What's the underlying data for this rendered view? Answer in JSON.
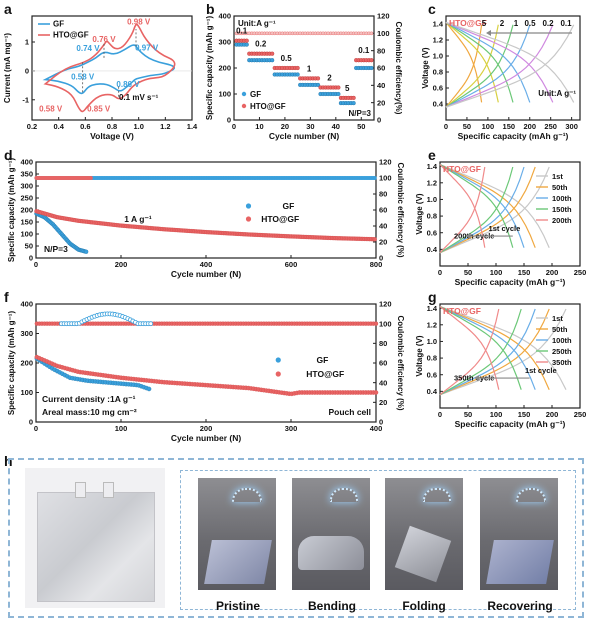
{
  "panel_letters": {
    "a": "a",
    "b": "b",
    "c": "c",
    "d": "d",
    "e": "e",
    "f": "f",
    "g": "g",
    "h": "h"
  },
  "colors": {
    "gf": "#3aa0dc",
    "hto": "#e86464",
    "gf_light": "#bcdff2",
    "hto_light": "#f3c0c0",
    "frame": "#222222",
    "dash": "#8fb6d6"
  },
  "chart_data": [
    {
      "id": "a",
      "type": "line",
      "xlabel": "Voltage (V)",
      "ylabel": "Current (mA mg⁻¹)",
      "xlim": [
        0.2,
        1.4
      ],
      "ylim": [
        -1.7,
        1.9
      ],
      "xticks": [
        "0.2",
        "0.4",
        "0.6",
        "0.8",
        "1.0",
        "1.2",
        "1.4"
      ],
      "yticks": [
        "-1",
        "0",
        "1"
      ],
      "series": [
        {
          "name": "GF",
          "x": [
            0.3,
            0.4,
            0.5,
            0.55,
            0.58,
            0.62,
            0.68,
            0.74,
            0.78,
            0.82,
            0.86,
            0.9,
            0.95,
            0.97,
            1.0,
            1.05,
            1.1,
            1.2,
            1.3,
            1.1,
            1.0,
            0.97,
            0.9,
            0.82,
            0.74,
            0.68,
            0.62,
            0.55,
            0.45,
            0.3
          ],
          "y": [
            -0.3,
            -0.35,
            -0.5,
            -0.75,
            -0.8,
            -0.55,
            -0.45,
            -0.45,
            -0.5,
            -0.6,
            -0.72,
            -0.6,
            -0.4,
            -0.3,
            -0.25,
            -0.2,
            -0.15,
            -0.1,
            0.15,
            0.35,
            0.7,
            0.95,
            0.75,
            0.55,
            0.68,
            0.45,
            0.3,
            0.15,
            0.05,
            -0.3
          ]
        },
        {
          "name": "HTO@GF",
          "x": [
            0.3,
            0.4,
            0.5,
            0.55,
            0.58,
            0.62,
            0.7,
            0.8,
            0.85,
            0.9,
            0.95,
            1.0,
            1.05,
            1.1,
            1.2,
            1.3,
            1.15,
            1.05,
            1.0,
            0.98,
            0.95,
            0.88,
            0.82,
            0.78,
            0.76,
            0.74,
            0.68,
            0.6,
            0.45,
            0.3
          ],
          "y": [
            -0.45,
            -0.55,
            -0.8,
            -1.3,
            -1.45,
            -1.2,
            -0.85,
            -0.8,
            -1.0,
            -0.85,
            -0.55,
            -0.4,
            -0.3,
            -0.25,
            -0.2,
            0.3,
            0.6,
            1.1,
            1.55,
            1.65,
            1.25,
            0.8,
            0.75,
            0.95,
            1.05,
            0.9,
            0.55,
            0.3,
            0.1,
            -0.45
          ]
        }
      ],
      "annotations": [
        {
          "text": "0.98 V",
          "x": 1.0,
          "y": 1.6,
          "color": "hto"
        },
        {
          "text": "0.76 V",
          "x": 0.74,
          "y": 1.0,
          "color": "hto"
        },
        {
          "text": "0.74 V",
          "x": 0.62,
          "y": 0.68,
          "color": "gf"
        },
        {
          "text": "0.97 V",
          "x": 1.06,
          "y": 0.7,
          "color": "gf"
        },
        {
          "text": "0.58 V",
          "x": 0.58,
          "y": -0.3,
          "color": "gf"
        },
        {
          "text": "0.86 V",
          "x": 0.92,
          "y": -0.55,
          "color": "gf"
        },
        {
          "text": "0.58 V",
          "x": 0.34,
          "y": -1.4,
          "color": "hto"
        },
        {
          "text": "0.85 V",
          "x": 0.7,
          "y": -1.4,
          "color": "hto"
        },
        {
          "text": "0.1 mV s⁻¹",
          "x": 1.0,
          "y": -1.0,
          "color": "black"
        }
      ],
      "legend": "top-left"
    },
    {
      "id": "b",
      "type": "scatter",
      "xlabel": "Cycle number (N)",
      "ylabel": "Specific capacity (mAh g⁻¹)",
      "y2label": "Coulombic efficiency(%)",
      "xlim": [
        0,
        55
      ],
      "ylim": [
        0,
        400
      ],
      "y2lim": [
        0,
        120
      ],
      "xticks": [
        "0",
        "10",
        "20",
        "30",
        "40",
        "50"
      ],
      "yticks": [
        "0",
        "100",
        "200",
        "300",
        "400"
      ],
      "y2ticks": [
        "0",
        "20",
        "40",
        "60",
        "80",
        "100",
        "120"
      ],
      "rate_steps": [
        {
          "label": "0.1",
          "from": 1,
          "to": 5,
          "gf": 290,
          "hto": 305
        },
        {
          "label": "0.2",
          "from": 6,
          "to": 15,
          "gf": 230,
          "hto": 255
        },
        {
          "label": "0.5",
          "from": 16,
          "to": 25,
          "gf": 175,
          "hto": 200
        },
        {
          "label": "1",
          "from": 26,
          "to": 33,
          "gf": 135,
          "hto": 160
        },
        {
          "label": "2",
          "from": 34,
          "to": 41,
          "gf": 100,
          "hto": 125
        },
        {
          "label": "5",
          "from": 42,
          "to": 47,
          "gf": 65,
          "hto": 85
        },
        {
          "label": "0.1",
          "from": 48,
          "to": 54,
          "gf": 200,
          "hto": 230
        }
      ],
      "efficiency": {
        "gf": 99,
        "hto": 100
      },
      "texts": {
        "unit": "Unit:A g⁻¹",
        "np": "N/P=3"
      },
      "series_names": [
        "GF",
        "HTO@GF"
      ],
      "legend": "bottom-left"
    },
    {
      "id": "c",
      "type": "line",
      "xlabel": "Specific capacity (mAh g⁻¹)",
      "ylabel": "Voltage (V)",
      "xlim": [
        0,
        320
      ],
      "ylim": [
        0.2,
        1.5
      ],
      "xticks": [
        "0",
        "50",
        "100",
        "150",
        "200",
        "250",
        "300"
      ],
      "yticks": [
        "0.4",
        "0.6",
        "0.8",
        "1.0",
        "1.2",
        "1.4"
      ],
      "title_text": "HTO@GF",
      "unit_text": "Unit:A g⁻¹",
      "rates": [
        "5",
        "2",
        "1",
        "0.5",
        "0.2",
        "0.1"
      ],
      "capacities": [
        85,
        125,
        160,
        200,
        255,
        305
      ],
      "colors": [
        "#f0a840",
        "#d8d040",
        "#6cc878",
        "#6aaee8",
        "#d08ae0",
        "#c8c8c8"
      ]
    },
    {
      "id": "d",
      "type": "scatter",
      "xlabel": "Cycle number (N)",
      "ylabel": "Specific capacity (mAh g⁻¹)",
      "y2label": "Coulombic efficiency (%)",
      "xlim": [
        0,
        800
      ],
      "ylim": [
        0,
        400
      ],
      "y2lim": [
        0,
        120
      ],
      "xticks": [
        "0",
        "200",
        "400",
        "600",
        "800"
      ],
      "yticks": [
        "0",
        "50",
        "100",
        "150",
        "200",
        "250",
        "300",
        "350",
        "400"
      ],
      "y2ticks": [
        "0",
        "20",
        "40",
        "60",
        "80",
        "100",
        "120"
      ],
      "series": [
        {
          "name": "GF",
          "x": [
            1,
            20,
            40,
            60,
            80,
            100,
            120
          ],
          "y": [
            185,
            170,
            140,
            100,
            60,
            35,
            25
          ]
        },
        {
          "name": "HTO@GF",
          "x": [
            1,
            50,
            100,
            200,
            300,
            400,
            500,
            600,
            700,
            800
          ],
          "y": [
            195,
            170,
            155,
            135,
            120,
            108,
            98,
            90,
            83,
            78
          ]
        }
      ],
      "efficiency": {
        "gf": 100,
        "hto": 100
      },
      "texts": {
        "rate": "1 A g⁻¹",
        "np": "N/P=3"
      },
      "legend": "top-right"
    },
    {
      "id": "e",
      "type": "line",
      "xlabel": "Specific capacity (mAh g⁻¹)",
      "ylabel": "Voltage (V)",
      "xlim": [
        0,
        250
      ],
      "ylim": [
        0.2,
        1.45
      ],
      "xticks": [
        "0",
        "50",
        "100",
        "150",
        "200",
        "250"
      ],
      "yticks": [
        "0.4",
        "0.6",
        "0.8",
        "1.0",
        "1.2",
        "1.4"
      ],
      "title_text": "HTO@GF",
      "cycles": [
        "1st",
        "50th",
        "100th",
        "150th",
        "200th"
      ],
      "capacities": [
        195,
        170,
        150,
        130,
        80
      ],
      "colors": [
        "#c8c8c8",
        "#f0a840",
        "#6aaee8",
        "#6cc878",
        "#f08a8a"
      ],
      "texts": {
        "first": "1st cycle",
        "last": "200th cycle"
      }
    },
    {
      "id": "f",
      "type": "scatter",
      "xlabel": "Cycle number (N)",
      "ylabel": "Specific capacity (mAh g⁻¹)",
      "y2label": "Coulombic efficiency (%)",
      "xlim": [
        0,
        400
      ],
      "ylim": [
        0,
        400
      ],
      "y2lim": [
        0,
        120
      ],
      "xticks": [
        "0",
        "100",
        "200",
        "300",
        "400"
      ],
      "yticks": [
        "0",
        "100",
        "200",
        "300",
        "400"
      ],
      "y2ticks": [
        "0",
        "20",
        "40",
        "60",
        "80",
        "100",
        "120"
      ],
      "series": [
        {
          "name": "GF",
          "x": [
            1,
            20,
            40,
            60,
            80,
            100,
            120,
            135
          ],
          "y": [
            215,
            180,
            150,
            140,
            135,
            130,
            125,
            110
          ]
        },
        {
          "name": "HTO@GF",
          "x": [
            1,
            25,
            50,
            100,
            150,
            200,
            250,
            300,
            310,
            350,
            400
          ],
          "y": [
            220,
            190,
            170,
            150,
            135,
            125,
            115,
            95,
            100,
            100,
            100
          ]
        }
      ],
      "efficiency": {
        "gf": 100,
        "hto": 100
      },
      "texts": {
        "density": "Current density :1A g⁻¹",
        "mass": "Areal mass:10 mg cm⁻²",
        "cell": "Pouch cell"
      },
      "legend": "center-right"
    },
    {
      "id": "g",
      "type": "line",
      "xlabel": "Specific capacity (mAh g⁻¹)",
      "ylabel": "Voltage (V)",
      "xlim": [
        0,
        250
      ],
      "ylim": [
        0.2,
        1.45
      ],
      "xticks": [
        "0",
        "50",
        "100",
        "150",
        "200",
        "250"
      ],
      "yticks": [
        "0.4",
        "0.6",
        "0.8",
        "1.0",
        "1.2",
        "1.4"
      ],
      "title_text": "HTO@GF",
      "cycles": [
        "1st",
        "50th",
        "100th",
        "250th",
        "350th"
      ],
      "capacities": [
        225,
        195,
        170,
        145,
        105
      ],
      "colors": [
        "#c8c8c8",
        "#f0a840",
        "#6aaee8",
        "#6cc878",
        "#f08a8a"
      ],
      "texts": {
        "first": "1st cycle",
        "last": "350th cycle"
      }
    }
  ],
  "panel_h": {
    "labels": [
      "Pristine",
      "Bending",
      "Folding",
      "Recovering"
    ]
  }
}
